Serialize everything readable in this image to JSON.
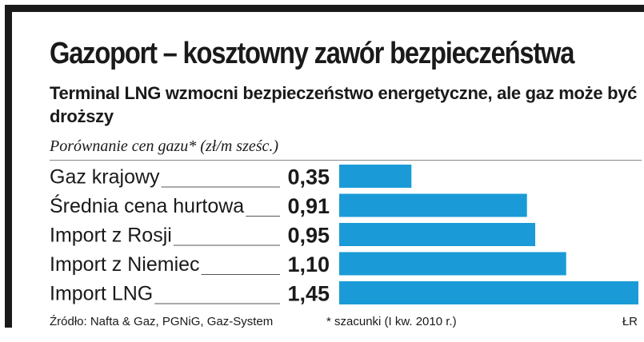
{
  "title": "Gazoport – kosztowny zawór bezpieczeństwa",
  "subtitle": "Terminal LNG wzmocni bezpieczeństwo energetyczne, ale gaz może być droższy",
  "chart_data": {
    "type": "bar",
    "orientation": "horizontal",
    "title": "Porównanie cen gazu* (zł/m sześc.)",
    "categories": [
      "Gaz krajowy",
      "Średnia cena hurtowa",
      "Import z Rosji",
      "Import z Niemiec",
      "Import LNG"
    ],
    "values": [
      0.35,
      0.91,
      0.95,
      1.1,
      1.45
    ],
    "value_labels": [
      "0,35",
      "0,91",
      "0,95",
      "1,10",
      "1,45"
    ],
    "xlim": [
      0,
      1.45
    ],
    "bar_color": "#1a9bd7",
    "leader_color": "#555555",
    "grid": false,
    "legend": "none"
  },
  "footer": {
    "source": "Źródło: Nafta & Gaz, PGNiG, Gaz-System",
    "note": "* szacunki (I kw. 2010 r.)",
    "credit": "ŁR"
  }
}
